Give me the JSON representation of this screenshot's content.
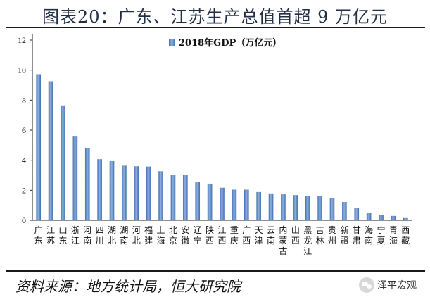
{
  "figure": {
    "title": "图表20：广东、江苏生产总值首超 9 万亿元",
    "source": "资料来源：地方统计局，恒大研究院",
    "watermark": "泽平宏观",
    "watermark_icon": "wechat-icon"
  },
  "chart_data": {
    "type": "bar",
    "legend": "2018年GDP（万亿元）",
    "legend_position": "top-center",
    "bar_color": "#5b87c5",
    "ylim": [
      0,
      12
    ],
    "yticks": [
      0,
      2,
      4,
      6,
      8,
      10,
      12
    ],
    "grid": false,
    "categories": [
      "广东",
      "江苏",
      "山东",
      "浙江",
      "河南",
      "四川",
      "湖北",
      "湖南",
      "河北",
      "福建",
      "上海",
      "北京",
      "安徽",
      "辽宁",
      "陕西",
      "江西",
      "重庆",
      "广西",
      "天津",
      "云南",
      "内蒙古",
      "山西",
      "黑龙江",
      "吉林",
      "贵州",
      "新疆",
      "甘肃",
      "海南",
      "宁夏",
      "青海",
      "西藏"
    ],
    "values": [
      9.73,
      9.26,
      7.65,
      5.62,
      4.81,
      4.07,
      3.94,
      3.64,
      3.6,
      3.58,
      3.27,
      3.03,
      3.0,
      2.53,
      2.44,
      2.17,
      2.04,
      2.04,
      1.88,
      1.79,
      1.73,
      1.68,
      1.64,
      1.61,
      1.48,
      1.22,
      0.82,
      0.48,
      0.37,
      0.29,
      0.15
    ]
  }
}
